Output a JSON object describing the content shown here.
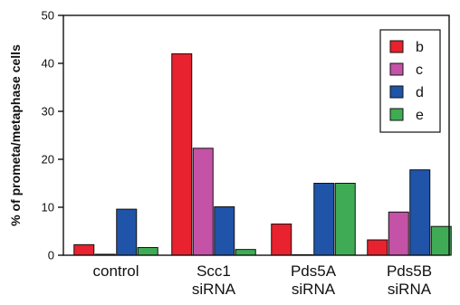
{
  "chart_data": {
    "type": "bar",
    "title": "",
    "xlabel": "",
    "ylabel": "% of prometa/metaphase cells",
    "ylim": [
      0,
      50
    ],
    "yticks": [
      0,
      10,
      20,
      30,
      40,
      50
    ],
    "categories": [
      [
        "control"
      ],
      [
        "Scc1",
        "siRNA"
      ],
      [
        "Pds5A",
        "siRNA"
      ],
      [
        "Pds5B",
        "siRNA"
      ]
    ],
    "series": [
      {
        "name": "b",
        "color": "#e8222e",
        "values": [
          2.2,
          42.0,
          6.5,
          3.2
        ]
      },
      {
        "name": "c",
        "color": "#c452a6",
        "values": [
          0.2,
          22.3,
          0.0,
          9.0
        ]
      },
      {
        "name": "d",
        "color": "#1f54a8",
        "values": [
          9.6,
          10.1,
          15.0,
          17.8
        ]
      },
      {
        "name": "e",
        "color": "#3fac55",
        "values": [
          1.6,
          1.2,
          15.0,
          6.0
        ]
      }
    ],
    "legend": "top-right",
    "grid": false
  }
}
